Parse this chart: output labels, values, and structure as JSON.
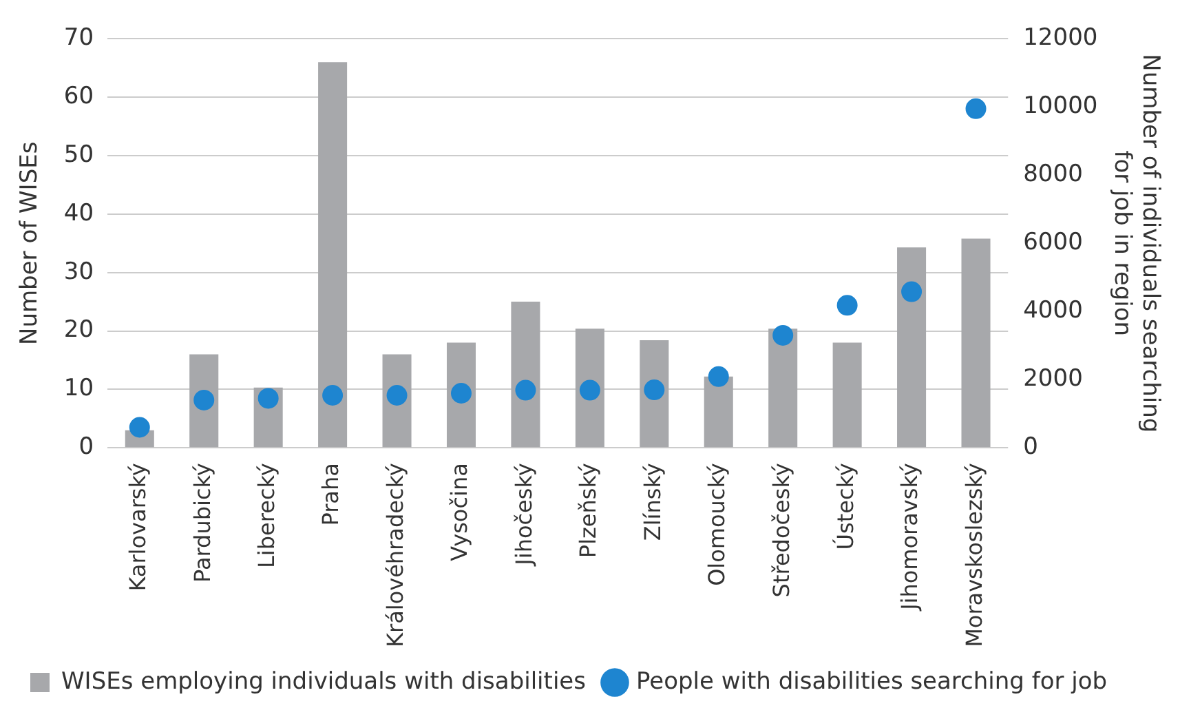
{
  "chart_data": {
    "type": "bar",
    "ylabel": "Number of WISEs",
    "y2label": "Number of individuals searching for job in region",
    "categories": [
      "Karlovarský",
      "Pardubický",
      "Liberecký",
      "Praha",
      "Královéhradecký",
      "Vysočina",
      "Jihočeský",
      "Plzeňský",
      "Zlínský",
      "Olomoucký",
      "Středočeský",
      "Ústecký",
      "Jihomoravský",
      "Moravskoslezský"
    ],
    "series": [
      {
        "name": "WISEs employing individuals with disabilities",
        "color": "#a7a8ab",
        "values": [
          3,
          16,
          10.3,
          66,
          16,
          18,
          25,
          20.4,
          18.4,
          12.2,
          20.4,
          18,
          34.3,
          35.8
        ]
      },
      {
        "name": "People with disabilities searching for job",
        "type": "scatter",
        "axis": "y2",
        "color": "#1e85d0",
        "marker": "circle",
        "values": [
          600,
          1400,
          1450,
          1540,
          1540,
          1600,
          1690,
          1690,
          1700,
          2090,
          3300,
          4180,
          4580,
          9950
        ]
      }
    ],
    "ylim": [
      0,
      70
    ],
    "yticks": [
      0,
      10,
      20,
      30,
      40,
      50,
      60,
      70
    ],
    "y2lim": [
      0,
      12000
    ],
    "y2ticks": [
      0,
      2000,
      4000,
      6000,
      8000,
      10000,
      12000
    ],
    "grid": "y",
    "legend": "bottom left"
  }
}
